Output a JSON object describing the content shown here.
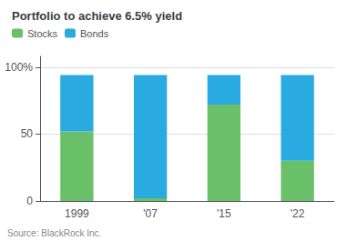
{
  "chart_data": {
    "type": "bar",
    "title": "Portfolio to achieve 6.5% yield",
    "categories": [
      "1999",
      "'07",
      "'15",
      "'22"
    ],
    "series": [
      {
        "name": "Stocks",
        "color": "#6abf69",
        "values": [
          52,
          2,
          72,
          30
        ]
      },
      {
        "name": "Bonds",
        "color": "#29abe2",
        "values": [
          42,
          92,
          22,
          64
        ]
      }
    ],
    "stacked": true,
    "ylim": [
      0,
      108
    ],
    "yticks": [
      0,
      50,
      {
        "value": 100,
        "label": "100%"
      }
    ],
    "grid": true,
    "legend": "upper left",
    "annotations": [
      "Source: BlackRock Inc."
    ]
  }
}
